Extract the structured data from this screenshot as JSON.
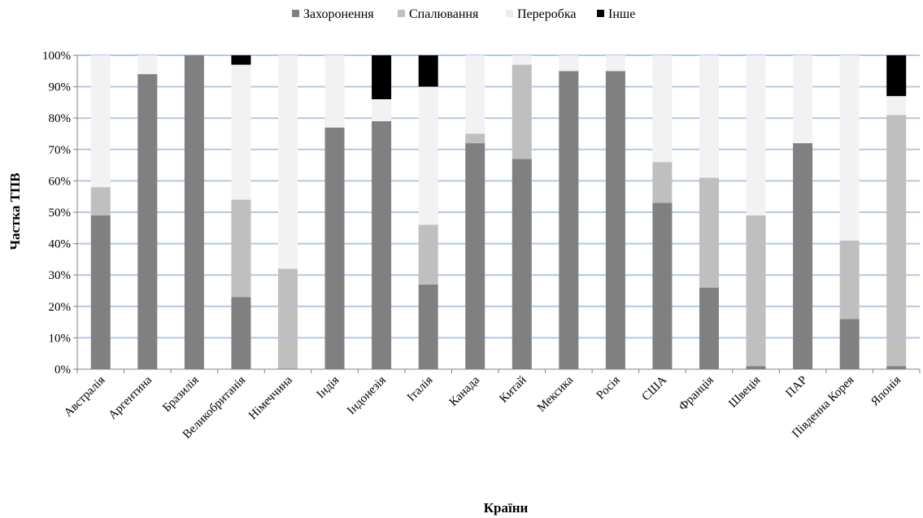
{
  "chart_data": {
    "type": "bar",
    "stacked": true,
    "xlabel": "Країни",
    "ylabel": "Частка ТПВ",
    "ylim": [
      0,
      100
    ],
    "y_ticks": [
      "0%",
      "10%",
      "20%",
      "30%",
      "40%",
      "50%",
      "60%",
      "70%",
      "80%",
      "90%",
      "100%"
    ],
    "grid": true,
    "legend_position": "top",
    "categories": [
      "Австралія",
      "Аргентина",
      "Бразилія",
      "Великобританія",
      "Німеччина",
      "Індія",
      "Індонезія",
      "Італія",
      "Канада",
      "Китай",
      "Мексика",
      "Росія",
      "США",
      "Франція",
      "Швеція",
      "ПАР",
      "Південна Корея",
      "Японія"
    ],
    "series": [
      {
        "name": "Захоронення",
        "color": "#808080",
        "values": [
          49,
          94,
          100,
          23,
          0,
          77,
          79,
          27,
          72,
          67,
          95,
          95,
          53,
          26,
          1,
          72,
          16,
          1
        ]
      },
      {
        "name": "Спалювання",
        "color": "#bfbfbf",
        "values": [
          9,
          0,
          0,
          31,
          32,
          0,
          0,
          19,
          3,
          30,
          0,
          0,
          13,
          35,
          48,
          0,
          25,
          80
        ]
      },
      {
        "name": "Переробка",
        "color": "#f2f2f2",
        "values": [
          42,
          6,
          0,
          43,
          68,
          23,
          7,
          44,
          25,
          3,
          5,
          5,
          34,
          39,
          51,
          28,
          59,
          6
        ]
      },
      {
        "name": "Інше",
        "color": "#000000",
        "values": [
          0,
          0,
          0,
          3,
          0,
          0,
          14,
          10,
          0,
          0,
          0,
          0,
          0,
          0,
          0,
          0,
          0,
          13
        ]
      }
    ],
    "gridline_color": "#b4c7e7"
  }
}
